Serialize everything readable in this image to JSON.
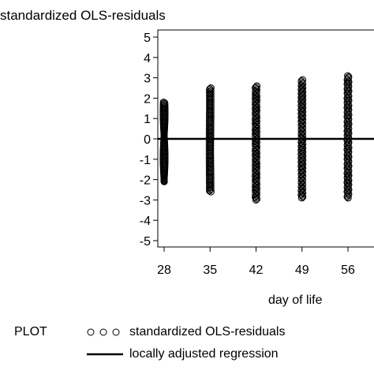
{
  "chart_data": {
    "type": "scatter",
    "title": "",
    "ylabel": "standardized OLS-residuals",
    "xlabel": "day of life",
    "ylim": [
      -5,
      5
    ],
    "yticks": [
      5,
      4,
      3,
      2,
      1,
      0,
      -1,
      -2,
      -3,
      -4,
      -5
    ],
    "xticks": [
      28,
      35,
      42,
      49,
      56
    ],
    "grid": false,
    "legend_placement": "bottom-left",
    "legend_title": "PLOT",
    "series": [
      {
        "name": "standardized OLS-residuals",
        "marker": "open-circle",
        "groups": [
          {
            "x": 28,
            "y_min": -2.1,
            "y_max": 1.8
          },
          {
            "x": 35,
            "y_min": -2.6,
            "y_max": 2.5
          },
          {
            "x": 42,
            "y_min": -3.0,
            "y_max": 2.6
          },
          {
            "x": 49,
            "y_min": -2.9,
            "y_max": 2.9
          },
          {
            "x": 56,
            "y_min": -2.9,
            "y_max": 3.1
          }
        ]
      },
      {
        "name": "locally adjusted regression",
        "marker": "line",
        "x": [
          28,
          56
        ],
        "y": [
          0,
          0
        ]
      }
    ],
    "colors": {
      "marker": "#000000",
      "line": "#000000"
    }
  }
}
